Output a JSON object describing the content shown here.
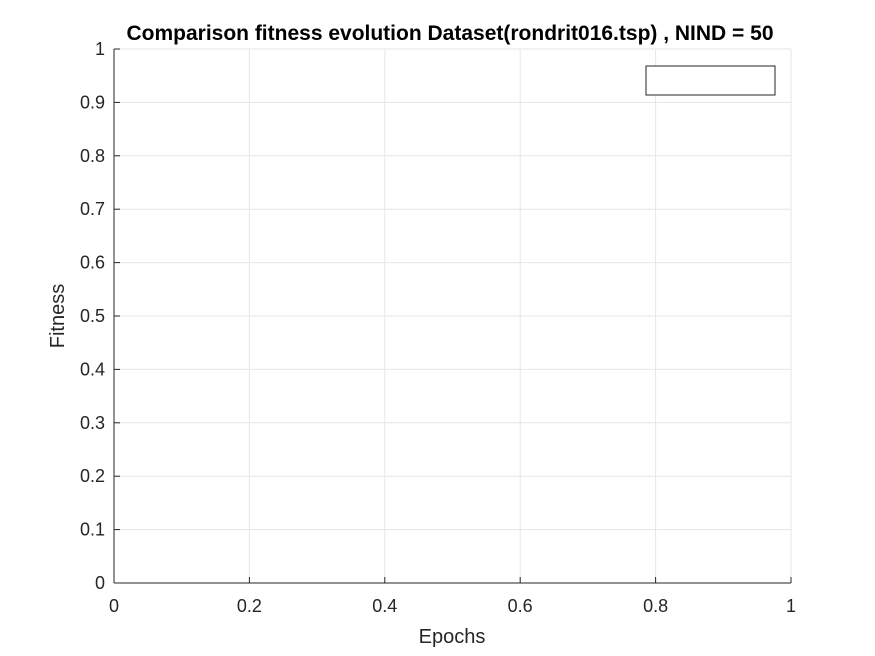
{
  "chart_data": {
    "type": "line",
    "title": "Comparison fitness evolution Dataset(rondrit016.tsp) , NIND = 50",
    "xlabel": "Epochs",
    "ylabel": "Fitness",
    "xlim": [
      0,
      1
    ],
    "ylim": [
      0,
      1
    ],
    "x_ticks": [
      "0",
      "0.2",
      "0.4",
      "0.6",
      "0.8",
      "1"
    ],
    "y_ticks": [
      "0",
      "0.1",
      "0.2",
      "0.3",
      "0.4",
      "0.5",
      "0.6",
      "0.7",
      "0.8",
      "0.9",
      "1"
    ],
    "grid": true,
    "legend": {
      "placement": "top-right",
      "entries": []
    },
    "series": []
  },
  "colors": {
    "background": "#ffffff",
    "axis": "#262626",
    "grid": "#e6e6e6",
    "legend_border": "#262626"
  }
}
